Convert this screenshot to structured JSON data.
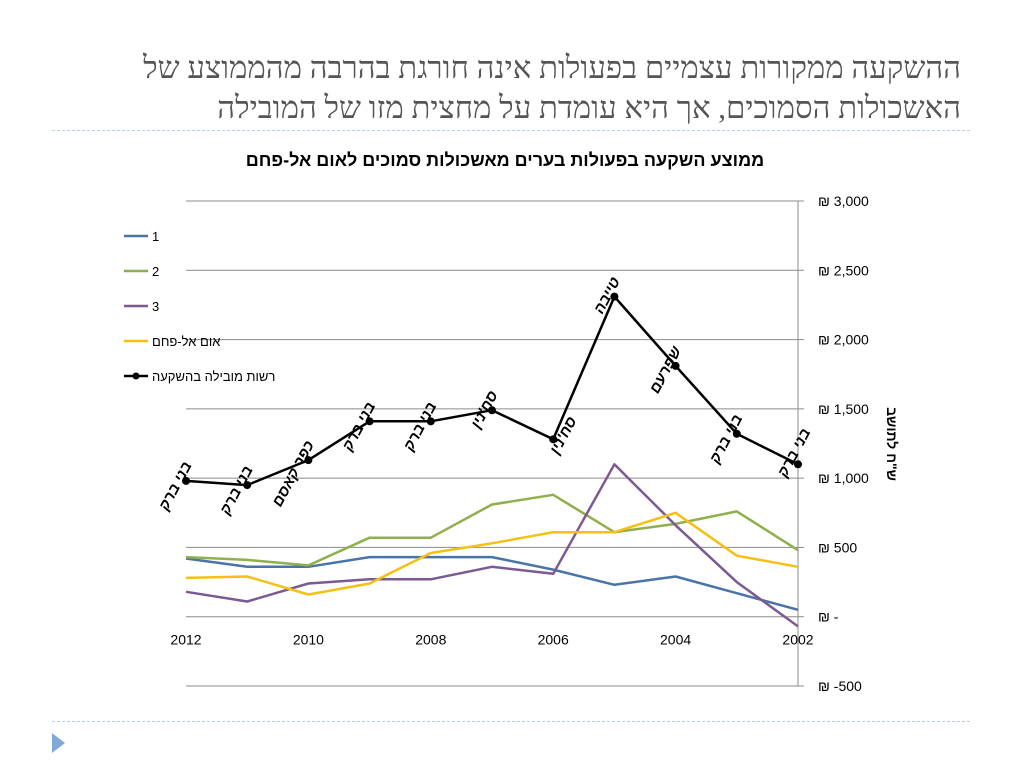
{
  "slide": {
    "title_lines": [
      "ההשקעה ממקורות עצמיים בפעולות אינה חורגת בהרבה מהממוצע של",
      "האשכולות הסמוכים, אך היא עומדת על מחצית מזו של המובילה"
    ]
  },
  "colors": {
    "series_1": "#4a74a8",
    "series_2": "#8fb04a",
    "series_3": "#7b5a92",
    "umm_al_fahm": "#f5c013",
    "leading_authority": "#000000",
    "gridline": "#8c8c8c",
    "separator": "#b9cde2",
    "bullet": "#7fa9d6"
  },
  "chart_data": {
    "type": "line",
    "title": "ממוצע השקעה בפעולות בערים מאשכולות סמוכים לאום אל-פחם",
    "xlabel": "",
    "ylabel": "ש\"ח לתושב",
    "x": [
      2012,
      2011,
      2010,
      2009,
      2008,
      2007,
      2006,
      2005,
      2004,
      2003,
      2002
    ],
    "x_tick_labels": [
      "2012",
      "2010",
      "2008",
      "2006",
      "2004",
      "2002"
    ],
    "x_reversed": true,
    "ylim": [
      -500,
      3000
    ],
    "y_ticks": [
      -500,
      0,
      500,
      1000,
      1500,
      2000,
      2500,
      3000
    ],
    "y_tick_labels": [
      "₪ -500",
      "₪ -",
      "₪ 500",
      "₪ 1,000",
      "₪ 1,500",
      "₪ 2,000",
      "₪ 2,500",
      "₪ 3,000"
    ],
    "y_axis_side": "right",
    "grid": true,
    "legend_position": "top-left",
    "series": [
      {
        "name": "1",
        "color_key": "series_1",
        "markers": false,
        "values": [
          420,
          360,
          360,
          430,
          430,
          430,
          340,
          230,
          290,
          170,
          50
        ]
      },
      {
        "name": "2",
        "color_key": "series_2",
        "markers": false,
        "values": [
          430,
          410,
          370,
          570,
          570,
          810,
          880,
          610,
          670,
          760,
          480
        ]
      },
      {
        "name": "3",
        "color_key": "series_3",
        "markers": false,
        "values": [
          180,
          110,
          240,
          270,
          270,
          360,
          310,
          1100,
          660,
          250,
          -70
        ]
      },
      {
        "name": "אום אל-פחם",
        "color_key": "umm_al_fahm",
        "markers": false,
        "values": [
          280,
          290,
          160,
          240,
          460,
          530,
          610,
          610,
          750,
          440,
          360
        ]
      },
      {
        "name": "רשות מובילה בהשקעה",
        "color_key": "leading_authority",
        "markers": true,
        "values": [
          980,
          950,
          1130,
          1410,
          1410,
          1490,
          1280,
          2310,
          1810,
          1320,
          1100
        ],
        "point_labels": [
          "בני ברק",
          "בני ברק",
          "כפר קאסם",
          "בני ברק",
          "בני ברק",
          "סח'נין",
          "סח'נין",
          "טייבה",
          "שפרעם",
          "בני ברק",
          "בני ברק"
        ]
      }
    ]
  }
}
